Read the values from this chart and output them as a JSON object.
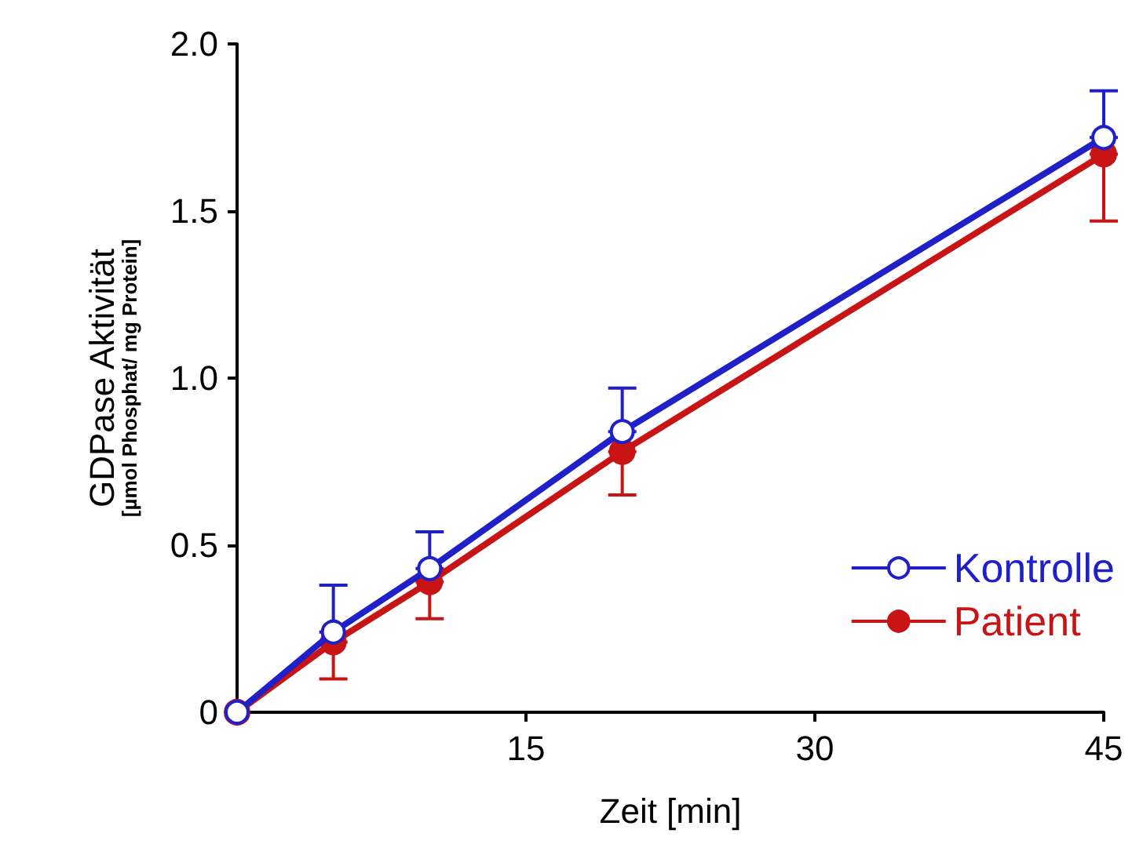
{
  "chart_data": {
    "type": "line",
    "xlabel": "Zeit [min]",
    "ylabel": "GDPase Aktivität\n[µmol Phosphat/ mg Protein]",
    "x": [
      0,
      5,
      10,
      20,
      45
    ],
    "series": [
      {
        "name": "Kontrolle",
        "color": "#2020c8",
        "values": [
          0,
          0.24,
          0.43,
          0.84,
          1.72
        ],
        "errors": [
          null,
          [
            0.24,
            0.38
          ],
          [
            0.43,
            0.54
          ],
          [
            0.84,
            0.97
          ],
          [
            1.72,
            1.86
          ]
        ]
      },
      {
        "name": "Patient",
        "color": "#c81414",
        "values": [
          0,
          0.21,
          0.39,
          0.78,
          1.67
        ],
        "errors": [
          null,
          [
            0.1,
            0.21
          ],
          [
            0.28,
            0.39
          ],
          [
            0.65,
            0.78
          ],
          [
            1.47,
            1.67
          ]
        ]
      }
    ],
    "xlim": [
      0,
      45
    ],
    "xticks": [
      15,
      30,
      45
    ],
    "ylim": [
      0,
      2
    ],
    "yticks": [
      0,
      0.5,
      {
        "value": 1,
        "label": "1.0"
      },
      1.5,
      {
        "value": 2,
        "label": "2.0"
      }
    ],
    "grid": false,
    "legend": "bottom right",
    "marker": "circle",
    "line_style": "solid"
  }
}
